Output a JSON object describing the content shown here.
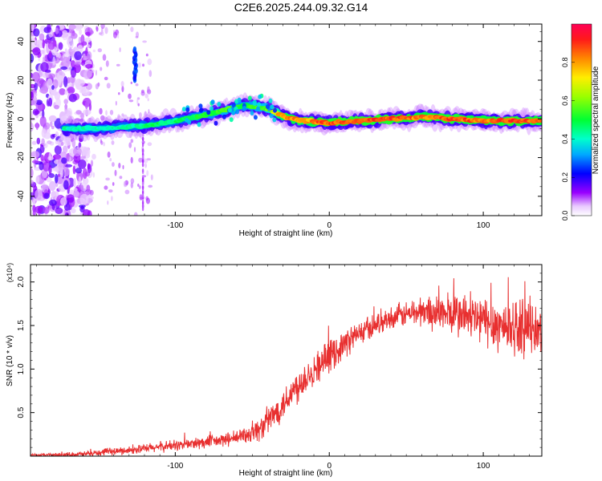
{
  "title": "C2E6.2025.244.09.32.G14",
  "colors": {
    "snr_line": "#e83030",
    "axis": "#000000",
    "ridge_core": "#e03030",
    "ridge_mid": "#20e040",
    "ridge_outer": "#2040ff",
    "halo": "#b070ff"
  },
  "colorbar": {
    "label": "Normalized spectral amplitude",
    "ticks": [
      0.0,
      0.2,
      0.4,
      0.6,
      0.8
    ],
    "tick_labels": [
      "0.0",
      "0.2",
      "0.4",
      "0.6",
      "0.8"
    ],
    "range": [
      0,
      1
    ],
    "stops": [
      {
        "v": 0.0,
        "c": "#ffffff"
      },
      {
        "v": 0.05,
        "c": "#e8c8ff"
      },
      {
        "v": 0.12,
        "c": "#9900ff"
      },
      {
        "v": 0.22,
        "c": "#0000ff"
      },
      {
        "v": 0.32,
        "c": "#00aaff"
      },
      {
        "v": 0.4,
        "c": "#00ffcc"
      },
      {
        "v": 0.5,
        "c": "#00ff33"
      },
      {
        "v": 0.62,
        "c": "#99ff00"
      },
      {
        "v": 0.72,
        "c": "#ffee00"
      },
      {
        "v": 0.82,
        "c": "#ff8800"
      },
      {
        "v": 0.92,
        "c": "#ff1a1a"
      },
      {
        "v": 1.0,
        "c": "#ff0055"
      }
    ]
  },
  "chart_data": [
    {
      "type": "heatmap",
      "xlabel": "Height of straight line (km)",
      "ylabel": "Frequency (Hz)",
      "xlim": [
        -194,
        138
      ],
      "ylim": [
        -50,
        49
      ],
      "x_ticks": [
        -100,
        0,
        100
      ],
      "x_tick_labels": [
        "-100",
        "0",
        "100"
      ],
      "y_ticks": [
        -40,
        -20,
        0,
        20,
        40
      ],
      "y_tick_labels": [
        "-40",
        "-20",
        "0",
        "20",
        "40"
      ],
      "ridge": {
        "x": [
          -170,
          -150,
          -130,
          -115,
          -100,
          -80,
          -65,
          -55,
          -45,
          -38,
          -32,
          -25,
          -15,
          0,
          20,
          40,
          60,
          80,
          100,
          120,
          138
        ],
        "y": [
          -5,
          -5,
          -4,
          -3,
          -1,
          2,
          5,
          7,
          6,
          5,
          2,
          0,
          -1,
          -2,
          -1,
          0,
          1,
          0,
          -1,
          -1,
          -1
        ],
        "amplitude": [
          0.45,
          0.45,
          0.45,
          0.5,
          0.5,
          0.55,
          0.6,
          0.55,
          0.6,
          0.65,
          0.85,
          0.9,
          0.85,
          0.95,
          0.95,
          0.95,
          0.9,
          0.95,
          0.9,
          0.95,
          0.9
        ]
      },
      "noise_region_x": [
        -194,
        -155
      ],
      "burst": {
        "x": -126,
        "y": [
          20,
          36
        ]
      }
    },
    {
      "type": "line",
      "xlabel": "Height of straight line (km)",
      "ylabel": "SNR (10 * v/v)",
      "y_scale_note": "(x10⁴)",
      "xlim": [
        -194,
        138
      ],
      "ylim": [
        0,
        2.2
      ],
      "x_ticks": [
        -100,
        0,
        100
      ],
      "x_tick_labels": [
        "-100",
        "0",
        "100"
      ],
      "y_ticks": [
        0.5,
        1.0,
        1.5,
        2.0
      ],
      "y_tick_labels": [
        "0.5",
        "1.0",
        "1.5",
        "2.0"
      ],
      "trend": {
        "x": [
          -194,
          -160,
          -140,
          -120,
          -100,
          -80,
          -60,
          -45,
          -35,
          -25,
          -15,
          -5,
          5,
          15,
          25,
          35,
          45,
          60,
          75,
          90,
          110,
          125,
          138
        ],
        "y": [
          0.01,
          0.02,
          0.05,
          0.08,
          0.12,
          0.15,
          0.2,
          0.3,
          0.48,
          0.7,
          0.9,
          1.05,
          1.2,
          1.35,
          1.45,
          1.55,
          1.6,
          1.65,
          1.62,
          1.58,
          1.48,
          1.45,
          1.4
        ]
      },
      "noise_amplitude": {
        "x": [
          -194,
          -100,
          -60,
          -40,
          -20,
          0,
          20,
          40,
          60,
          90,
          120,
          138
        ],
        "y": [
          0.01,
          0.08,
          0.1,
          0.2,
          0.25,
          0.22,
          0.18,
          0.15,
          0.22,
          0.35,
          0.4,
          0.35
        ]
      }
    }
  ]
}
